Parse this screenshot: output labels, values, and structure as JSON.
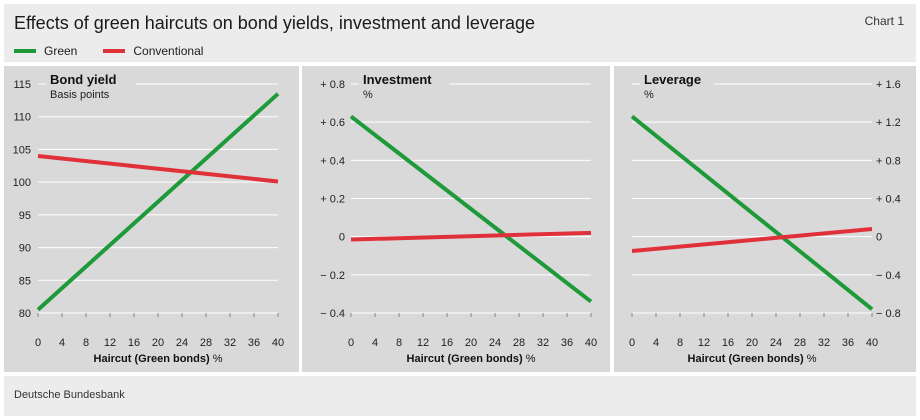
{
  "header": {
    "title": "Effects of green haircuts on bond yields, investment and leverage",
    "chart_number": "Chart 1"
  },
  "legend": [
    {
      "name": "Green",
      "color": "#1e9a3a"
    },
    {
      "name": "Conventional",
      "color": "#e0303a"
    }
  ],
  "footer": {
    "source": "Deutsche Bundesbank"
  },
  "colors": {
    "panel_bg": "#d9d9d9",
    "header_bg": "#ececec",
    "green": "#1e9a3a",
    "conventional": "#e0303a"
  },
  "chart_data": [
    {
      "type": "line",
      "title": "Bond yield",
      "unit": "Basis points",
      "xlabel": "Haircut (Green bonds)",
      "xlabel_unit": "%",
      "x_ticks": [
        "0",
        "4",
        "8",
        "12",
        "16",
        "20",
        "24",
        "28",
        "32",
        "36",
        "40"
      ],
      "xlim": [
        0,
        40
      ],
      "ylim": [
        80,
        115
      ],
      "y_ticks": [
        {
          "value": 80,
          "label": "80"
        },
        {
          "value": 85,
          "label": "85"
        },
        {
          "value": 90,
          "label": "90"
        },
        {
          "value": 95,
          "label": "95"
        },
        {
          "value": 100,
          "label": "100"
        },
        {
          "value": 105,
          "label": "105"
        },
        {
          "value": 110,
          "label": "110"
        },
        {
          "value": 115,
          "label": "115"
        }
      ],
      "y_axis_side": "left",
      "series": [
        {
          "name": "Green",
          "x": [
            0,
            40
          ],
          "values": [
            80.5,
            113.5
          ]
        },
        {
          "name": "Conventional",
          "x": [
            0,
            40
          ],
          "values": [
            104,
            100.1
          ]
        }
      ]
    },
    {
      "type": "line",
      "title": "Investment",
      "unit": "%",
      "xlabel": "Haircut (Green bonds)",
      "xlabel_unit": "%",
      "x_ticks": [
        "0",
        "4",
        "8",
        "12",
        "16",
        "20",
        "24",
        "28",
        "32",
        "36",
        "40"
      ],
      "xlim": [
        0,
        40
      ],
      "ylim": [
        -0.4,
        0.8
      ],
      "y_ticks": [
        {
          "value": -0.4,
          "label": "− 0.4"
        },
        {
          "value": -0.2,
          "label": "− 0.2"
        },
        {
          "value": 0,
          "label": "0"
        },
        {
          "value": 0.2,
          "label": "+ 0.2"
        },
        {
          "value": 0.4,
          "label": "+ 0.4"
        },
        {
          "value": 0.6,
          "label": "+ 0.6"
        },
        {
          "value": 0.8,
          "label": "+ 0.8"
        }
      ],
      "y_axis_side": "left",
      "series": [
        {
          "name": "Green",
          "x": [
            0,
            40
          ],
          "values": [
            0.63,
            -0.34
          ]
        },
        {
          "name": "Conventional",
          "x": [
            0,
            40
          ],
          "values": [
            -0.015,
            0.02
          ]
        }
      ]
    },
    {
      "type": "line",
      "title": "Leverage",
      "unit": "%",
      "xlabel": "Haircut (Green bonds)",
      "xlabel_unit": "%",
      "x_ticks": [
        "0",
        "4",
        "8",
        "12",
        "16",
        "20",
        "24",
        "28",
        "32",
        "36",
        "40"
      ],
      "xlim": [
        0,
        40
      ],
      "ylim": [
        -0.8,
        1.6
      ],
      "y_ticks": [
        {
          "value": -0.8,
          "label": "− 0.8"
        },
        {
          "value": -0.4,
          "label": "− 0.4"
        },
        {
          "value": 0,
          "label": "0"
        },
        {
          "value": 0.4,
          "label": "+ 0.4"
        },
        {
          "value": 0.8,
          "label": "+ 0.8"
        },
        {
          "value": 1.2,
          "label": "+ 1.2"
        },
        {
          "value": 1.6,
          "label": "+ 1.6"
        }
      ],
      "y_axis_side": "right",
      "series": [
        {
          "name": "Green",
          "x": [
            0,
            40
          ],
          "values": [
            1.26,
            -0.76
          ]
        },
        {
          "name": "Conventional",
          "x": [
            0,
            40
          ],
          "values": [
            -0.15,
            0.08
          ]
        }
      ]
    }
  ]
}
